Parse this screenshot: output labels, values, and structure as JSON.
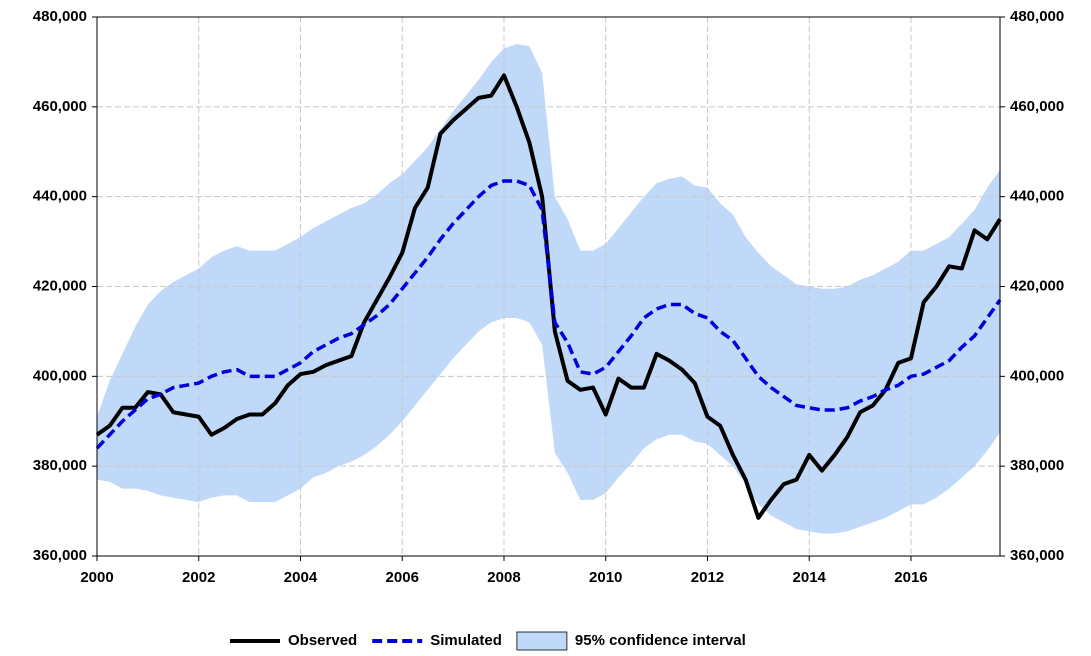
{
  "chart_data": {
    "type": "line",
    "x": [
      2000,
      2000.25,
      2000.5,
      2000.75,
      2001,
      2001.25,
      2001.5,
      2001.75,
      2002,
      2002.25,
      2002.5,
      2002.75,
      2003,
      2003.25,
      2003.5,
      2003.75,
      2004,
      2004.25,
      2004.5,
      2004.75,
      2005,
      2005.25,
      2005.5,
      2005.75,
      2006,
      2006.25,
      2006.5,
      2006.75,
      2007,
      2007.25,
      2007.5,
      2007.75,
      2008,
      2008.25,
      2008.5,
      2008.75,
      2009,
      2009.25,
      2009.5,
      2009.75,
      2010,
      2010.25,
      2010.5,
      2010.75,
      2011,
      2011.25,
      2011.5,
      2011.75,
      2012,
      2012.25,
      2012.5,
      2012.75,
      2013,
      2013.25,
      2013.5,
      2013.75,
      2014,
      2014.25,
      2014.5,
      2014.75,
      2015,
      2015.25,
      2015.5,
      2015.75,
      2016,
      2016.25,
      2016.5,
      2016.75,
      2017,
      2017.25,
      2017.5,
      2017.75
    ],
    "series": [
      {
        "name": "Observed",
        "color": "#000000",
        "dashed": false,
        "values": [
          387000,
          389000,
          393000,
          393000,
          396500,
          396000,
          392000,
          391500,
          391000,
          387000,
          388500,
          390500,
          391500,
          391500,
          394000,
          398000,
          400500,
          401000,
          402500,
          403500,
          404500,
          412000,
          417000,
          422000,
          427500,
          437500,
          442000,
          454000,
          457000,
          459500,
          462000,
          462500,
          467000,
          460000,
          452000,
          440000,
          410000,
          399000,
          397000,
          397500,
          391500,
          399500,
          397500,
          397500,
          405000,
          403500,
          401500,
          398500,
          391000,
          389000,
          382500,
          377000,
          368500,
          372500,
          376000,
          377000,
          382500,
          379000,
          382500,
          386500,
          392000,
          393500,
          397000,
          403000,
          404000,
          416500,
          420000,
          424500,
          424000,
          432500,
          430500,
          435000
        ]
      },
      {
        "name": "Simulated",
        "color": "#0000dd",
        "dashed": true,
        "values": [
          384000,
          387000,
          390000,
          392500,
          395000,
          396000,
          397500,
          398000,
          398500,
          400000,
          401000,
          401500,
          400000,
          400000,
          400000,
          401500,
          403000,
          405500,
          407000,
          408500,
          409500,
          411500,
          413500,
          416000,
          419500,
          423000,
          426500,
          430500,
          434000,
          437000,
          440000,
          442500,
          443500,
          443500,
          442500,
          437000,
          412000,
          407500,
          401000,
          400500,
          402000,
          405500,
          409000,
          413000,
          415000,
          416000,
          416000,
          414000,
          413000,
          410000,
          408000,
          404000,
          400000,
          397500,
          395500,
          393500,
          393000,
          392500,
          392500,
          393000,
          394500,
          395500,
          397000,
          398000,
          400000,
          400500,
          402000,
          403500,
          406500,
          409000,
          413000,
          417000
        ]
      }
    ],
    "band": {
      "name": "95% confidence interval",
      "color": "#c0d9f8",
      "upper": [
        391000,
        399000,
        405000,
        411000,
        416000,
        419000,
        421000,
        422500,
        424000,
        426500,
        428000,
        429000,
        428000,
        428000,
        428000,
        429500,
        431000,
        433000,
        434500,
        436000,
        437500,
        438500,
        440500,
        443000,
        445000,
        448000,
        451000,
        455000,
        459000,
        462500,
        466000,
        470000,
        473000,
        474000,
        473500,
        467500,
        440000,
        435000,
        428000,
        428000,
        429500,
        433000,
        436500,
        440000,
        443000,
        444000,
        444500,
        442500,
        442000,
        438500,
        436000,
        431000,
        427500,
        424500,
        422500,
        420500,
        420000,
        419500,
        419500,
        420000,
        421500,
        422500,
        424000,
        425500,
        428000,
        428000,
        429500,
        431000,
        434000,
        437000,
        442000,
        446000
      ],
      "lower": [
        377000,
        376500,
        375000,
        375000,
        374500,
        373500,
        373000,
        372500,
        372000,
        373000,
        373500,
        373500,
        372000,
        372000,
        372000,
        373500,
        375000,
        377500,
        378500,
        380000,
        381000,
        382500,
        384500,
        387000,
        390000,
        393500,
        397000,
        400500,
        404000,
        407000,
        410000,
        412000,
        413000,
        413000,
        412000,
        407000,
        383000,
        378500,
        372500,
        372500,
        374000,
        377500,
        380500,
        384000,
        386000,
        387000,
        387000,
        385500,
        385000,
        382500,
        380000,
        376000,
        371500,
        369000,
        367500,
        366000,
        365500,
        365000,
        365000,
        365500,
        366500,
        367500,
        368500,
        370000,
        371500,
        371500,
        373000,
        375000,
        377500,
        380000,
        383500,
        387500
      ]
    },
    "xlim": [
      2000,
      2017.75
    ],
    "xticks": [
      2000,
      2002,
      2004,
      2006,
      2008,
      2010,
      2012,
      2014,
      2016
    ],
    "ylim": [
      360000,
      480000
    ],
    "yticks": [
      {
        "value": 360000,
        "label": "360,000"
      },
      {
        "value": 380000,
        "label": "380,000"
      },
      {
        "value": 400000,
        "label": "400,000"
      },
      {
        "value": 420000,
        "label": "420,000"
      },
      {
        "value": 440000,
        "label": "440,000"
      },
      {
        "value": 460000,
        "label": "460,000"
      },
      {
        "value": 480000,
        "label": "480,000"
      }
    ],
    "grid": true
  }
}
